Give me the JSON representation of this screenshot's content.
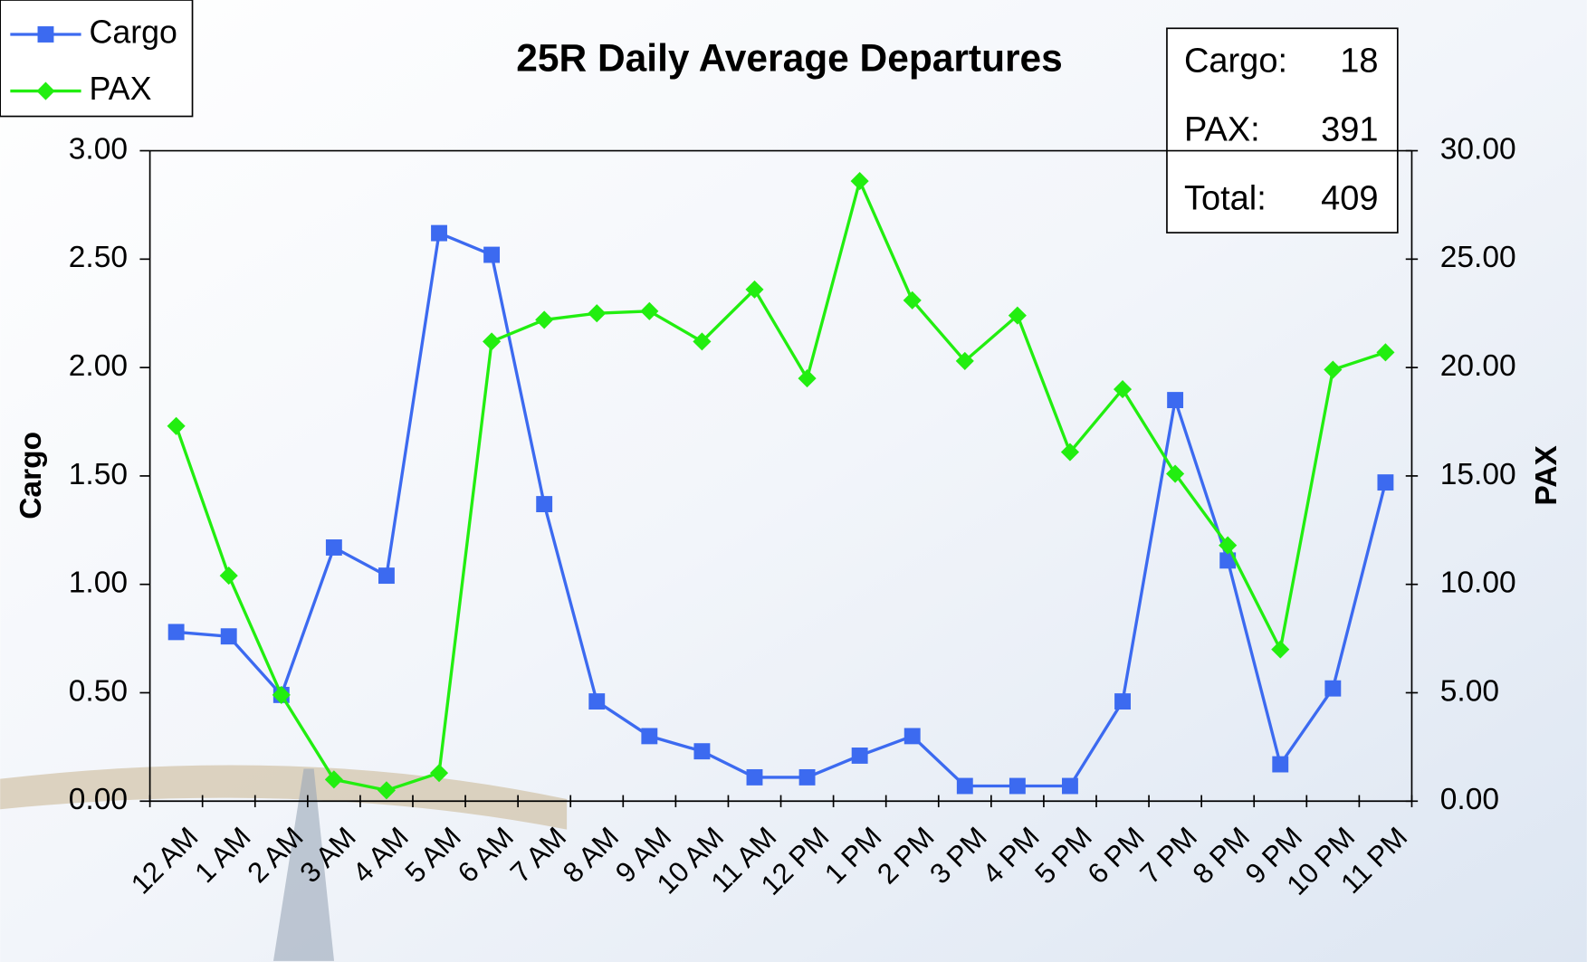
{
  "chart_data": {
    "type": "line",
    "title": "25R Daily Average Departures",
    "ylabel": "Cargo",
    "y2label": "PAX",
    "categories": [
      "12 AM",
      "1 AM",
      "2 AM",
      "3 AM",
      "4 AM",
      "5 AM",
      "6 AM",
      "7 AM",
      "8 AM",
      "9 AM",
      "10 AM",
      "11 AM",
      "12 PM",
      "1 PM",
      "2 PM",
      "3 PM",
      "4 PM",
      "5 PM",
      "6 PM",
      "7 PM",
      "8 PM",
      "9 PM",
      "10 PM",
      "11 PM"
    ],
    "series": [
      {
        "name": "Cargo",
        "color": "#3c6af0",
        "marker": "square",
        "axis": "y",
        "values": [
          0.78,
          0.76,
          0.49,
          1.17,
          1.04,
          2.62,
          2.52,
          1.37,
          0.46,
          0.3,
          0.23,
          0.11,
          0.11,
          0.21,
          0.3,
          0.07,
          0.07,
          0.07,
          0.46,
          1.85,
          1.11,
          0.17,
          0.52,
          1.47
        ]
      },
      {
        "name": "PAX",
        "color": "#22ee10",
        "marker": "diamond",
        "axis": "y2",
        "values": [
          17.3,
          10.4,
          4.9,
          1.0,
          0.5,
          1.3,
          21.2,
          22.2,
          22.5,
          22.6,
          21.2,
          23.6,
          19.5,
          28.6,
          23.1,
          20.3,
          22.4,
          16.1,
          19.0,
          15.1,
          11.8,
          7.0,
          19.9,
          20.7
        ]
      }
    ],
    "ylim": [
      0,
      3
    ],
    "yticks": [
      {
        "value": 0,
        "label": "0.00"
      },
      {
        "value": 0.5,
        "label": "0.50"
      },
      {
        "value": 1,
        "label": "1.00"
      },
      {
        "value": 1.5,
        "label": "1.50"
      },
      {
        "value": 2,
        "label": "2.00"
      },
      {
        "value": 2.5,
        "label": "2.50"
      },
      {
        "value": 3,
        "label": "3.00"
      }
    ],
    "y2lim": [
      0,
      30
    ],
    "y2ticks": [
      {
        "value": 0,
        "label": "0.00"
      },
      {
        "value": 5,
        "label": "5.00"
      },
      {
        "value": 10,
        "label": "10.00"
      },
      {
        "value": 15,
        "label": "15.00"
      },
      {
        "value": 20,
        "label": "20.00"
      },
      {
        "value": 25,
        "label": "25.00"
      },
      {
        "value": 30,
        "label": "30.00"
      }
    ],
    "grid": false,
    "legend": "top-left",
    "info_box": [
      {
        "label": "Cargo:",
        "value": 18
      },
      {
        "label": "PAX:",
        "value": 391
      },
      {
        "label": "Total:",
        "value": 409
      }
    ]
  }
}
